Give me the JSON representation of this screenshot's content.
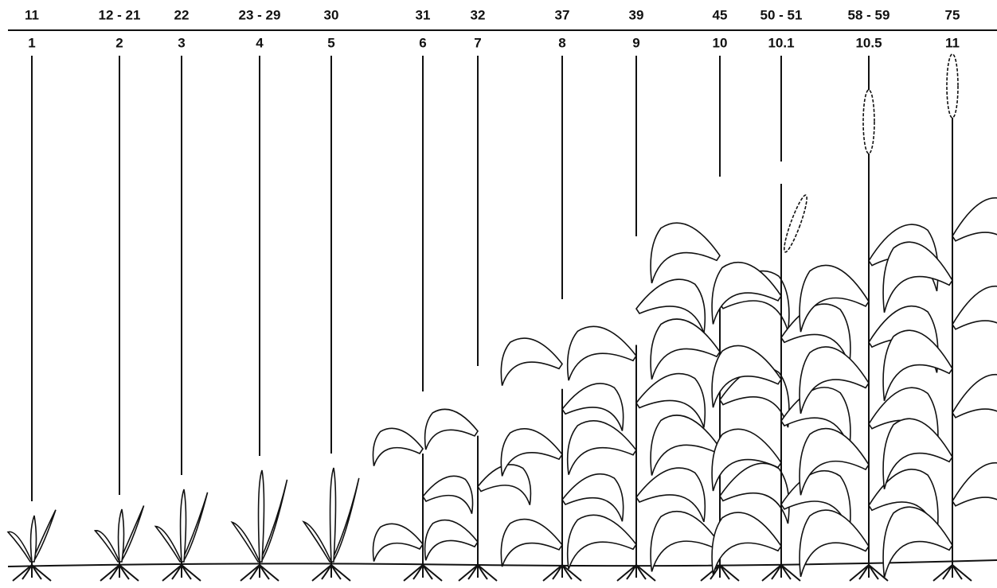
{
  "stages": [
    {
      "zadoks": "11",
      "feekes": "1"
    },
    {
      "zadoks": "12 - 21",
      "feekes": "2"
    },
    {
      "zadoks": "22",
      "feekes": "3"
    },
    {
      "zadoks": "23 - 29",
      "feekes": "4"
    },
    {
      "zadoks": "30",
      "feekes": "5"
    },
    {
      "zadoks": "31",
      "feekes": "6"
    },
    {
      "zadoks": "32",
      "feekes": "7"
    },
    {
      "zadoks": "37",
      "feekes": "8"
    },
    {
      "zadoks": "39",
      "feekes": "9"
    },
    {
      "zadoks": "45",
      "feekes": "10"
    },
    {
      "zadoks": "50 - 51",
      "feekes": "10.1"
    },
    {
      "zadoks": "58 - 59",
      "feekes": "10.5"
    },
    {
      "zadoks": "75",
      "feekes": "11"
    }
  ]
}
